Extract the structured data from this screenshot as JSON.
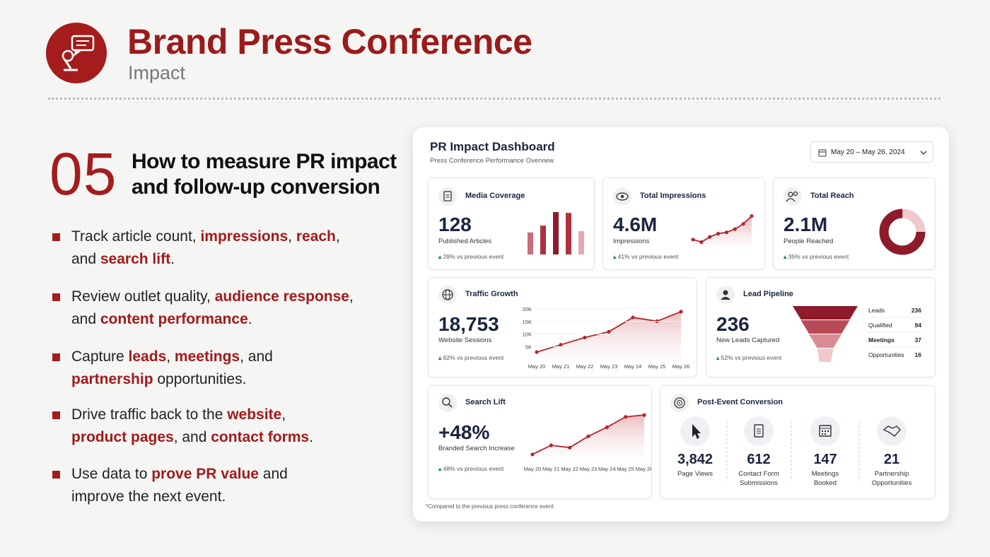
{
  "header": {
    "title": "Brand Press Conference",
    "subtitle": "Impact"
  },
  "section": {
    "number": "05",
    "heading": [
      "How to measure PR impact",
      "and follow-up conversion"
    ]
  },
  "bullets": [
    [
      [
        {
          "text": "Track article count, "
        },
        {
          "text": "impressions",
          "em": true
        },
        {
          "text": ", "
        },
        {
          "text": "reach",
          "em": true
        },
        {
          "text": ","
        }
      ],
      [
        {
          "text": "and "
        },
        {
          "text": "search lift",
          "em": true
        },
        {
          "text": "."
        }
      ]
    ],
    [
      [
        {
          "text": "Review outlet quality, "
        },
        {
          "text": "audience response",
          "em": true
        },
        {
          "text": ","
        }
      ],
      [
        {
          "text": "and "
        },
        {
          "text": "content performance",
          "em": true
        },
        {
          "text": "."
        }
      ]
    ],
    [
      [
        {
          "text": "Capture "
        },
        {
          "text": "leads",
          "em": true
        },
        {
          "text": ", "
        },
        {
          "text": "meetings",
          "em": true
        },
        {
          "text": ", and"
        }
      ],
      [
        {
          "text": "partnership",
          "em": true
        },
        {
          "text": " opportunities."
        }
      ]
    ],
    [
      [
        {
          "text": "Drive traffic back to the "
        },
        {
          "text": "website",
          "em": true
        },
        {
          "text": ","
        }
      ],
      [
        {
          "text": "product pages",
          "em": true
        },
        {
          "text": ", and "
        },
        {
          "text": "contact forms",
          "em": true
        },
        {
          "text": "."
        }
      ]
    ],
    [
      [
        {
          "text": "Use data to "
        },
        {
          "text": "prove PR value",
          "em": true
        },
        {
          "text": " and"
        }
      ],
      [
        {
          "text": "improve the next event."
        }
      ]
    ]
  ],
  "dashboard": {
    "title": "PR Impact Dashboard",
    "subtitle": "Press Conference Performance Overview",
    "date_range": "May 20 – May 26, 2024",
    "footnote": "*Compared to the previous press conference event.",
    "media_coverage": {
      "label": "Media Coverage",
      "value": "128",
      "unit": "Published Articles",
      "change": "28%",
      "note": "vs previous event",
      "chart": {
        "type": "bar",
        "values": [
          52,
          68,
          100,
          98,
          55
        ],
        "colors": [
          "#c96d78",
          "#a8323f",
          "#8e1b2b",
          "#b0303e",
          "#e3a9b0"
        ],
        "ylim": [
          0,
          100
        ]
      }
    },
    "total_impressions": {
      "label": "Total Impressions",
      "value": "4.6M",
      "unit": "Impressions",
      "change": "41%",
      "note": "vs previous event",
      "chart": {
        "type": "line",
        "values": [
          20,
          12,
          28,
          38,
          42,
          52,
          68,
          92
        ],
        "color": "#b3262b",
        "ylim": [
          0,
          100
        ]
      }
    },
    "total_reach": {
      "label": "Total Reach",
      "value": "2.1M",
      "unit": "People Reached",
      "change": "35%",
      "note": "vs previous event",
      "chart": {
        "type": "donut",
        "value": 75,
        "range": [
          0,
          100
        ],
        "color": "#8e1b2b",
        "track_color": "#efc9cc"
      }
    },
    "traffic_growth": {
      "label": "Traffic Growth",
      "value": "18,753",
      "unit": "Website Sessions",
      "change": "62%",
      "note": "vs previous event",
      "chart": {
        "type": "line",
        "categories": [
          "May 20",
          "May 21",
          "May 22",
          "May 23",
          "May 24",
          "May 25",
          "May 26"
        ],
        "values": [
          2800,
          5700,
          8600,
          10900,
          16600,
          15100,
          18900
        ],
        "color": "#b3262b",
        "ylim": [
          0,
          20000
        ],
        "yticks": [
          {
            "value": 5000,
            "label": "5K"
          },
          {
            "value": 10000,
            "label": "10K"
          },
          {
            "value": 15000,
            "label": "15K"
          },
          {
            "value": 20000,
            "label": "20K"
          }
        ]
      }
    },
    "lead_pipeline": {
      "label": "Lead Pipeline",
      "value": "236",
      "unit": "New Leads Captured",
      "change": "52%",
      "note": "vs previous event",
      "chart": {
        "type": "funnel",
        "categories": [
          "Leads",
          "Qualified",
          "Meetings",
          "Opportunities"
        ],
        "values": [
          236,
          94,
          37,
          16
        ],
        "colors": [
          "#8e1b2b",
          "#b94a57",
          "#d98a92",
          "#f0c9cc"
        ]
      }
    },
    "search_lift": {
      "label": "Search Lift",
      "value": "+48%",
      "unit": "Branded Search Increase",
      "change": "48%",
      "note": "vs previous event",
      "chart": {
        "type": "line",
        "categories": [
          "May 20",
          "May 21",
          "May 22",
          "May 23",
          "May 24",
          "May 25",
          "May 26"
        ],
        "values": [
          5,
          25,
          20,
          45,
          65,
          88,
          92
        ],
        "color": "#b3262b",
        "ylim": [
          0,
          100
        ]
      }
    },
    "post_event_conversion": {
      "label": "Post-Event Conversion",
      "items": [
        {
          "value": "3,842",
          "label": "Page Views"
        },
        {
          "value": "612",
          "label": "Contact Form Submissions"
        },
        {
          "value": "147",
          "label": "Meetings Booked"
        },
        {
          "value": "21",
          "label": "Partnership Opportunities"
        }
      ]
    }
  }
}
